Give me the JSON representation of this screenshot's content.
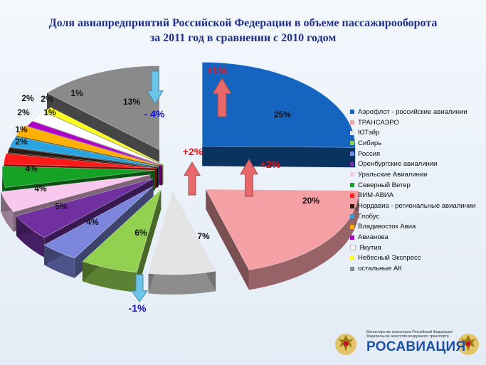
{
  "title_line1": "Доля авиапредприятий Российской Федерации в объеме пассажирооборота",
  "title_line2": "за 2011 год в сравнении с 2010 годом",
  "chart_data": {
    "type": "pie",
    "title": "Доля авиапредприятий Российской Федерации в объеме пассажирооборота за 2011 год в сравнении с 2010 годом",
    "unit": "%",
    "slices": [
      {
        "name": "Аэрофлот - российские авиалинии",
        "value": 25,
        "label": "25%",
        "color": "#1565c0"
      },
      {
        "name": "ТРАНСАЭРО",
        "value": 20,
        "label": "20%",
        "color": "#f4a0a4"
      },
      {
        "name": "ЮТэйр",
        "value": 7,
        "label": "7%",
        "color": "#e4e4e4"
      },
      {
        "name": "Сибирь",
        "value": 6,
        "label": "6%",
        "color": "#92d050"
      },
      {
        "name": "Россия",
        "value": 4,
        "label": "4%",
        "color": "#7b86dc"
      },
      {
        "name": "Оренбургские авиалинии",
        "value": 5,
        "label": "5%",
        "color": "#7030a0"
      },
      {
        "name": "Уральские Авиалинии",
        "value": 4,
        "label": "4%",
        "color": "#f9c8ee"
      },
      {
        "name": "Северный Ветер",
        "value": 4,
        "label": "4%",
        "color": "#16a325"
      },
      {
        "name": "ВИМ-АВИА",
        "value": 2,
        "label": "2%",
        "color": "#ff1a1a"
      },
      {
        "name": "Нордавиа - региональные авиалинии",
        "value": 1,
        "label": "1%",
        "color": "#2b1b12"
      },
      {
        "name": "Глобус",
        "value": 2,
        "label": "2%",
        "color": "#2aa4e0"
      },
      {
        "name": "Владивосток Авиа",
        "value": 2,
        "label": "2%",
        "color": "#ffb000"
      },
      {
        "name": "Авианова",
        "value": 1,
        "label": "1%",
        "color": "#b000c8"
      },
      {
        "name": "Якутия",
        "value": 2,
        "label": "2%",
        "color": "#ffffff"
      },
      {
        "name": "Небесный Экспресс",
        "value": 1,
        "label": "1%",
        "color": "#ffff20"
      },
      {
        "name": "остальные АК",
        "value": 13,
        "label": "13%",
        "color": "#8a8a8a"
      }
    ],
    "changes": [
      {
        "slice": "Аэрофлот - российские авиалинии",
        "label": "+1%",
        "direction": "up"
      },
      {
        "slice": "ТРАНСАЭРО",
        "label": "+2%",
        "direction": "up"
      },
      {
        "slice": "ЮТэйр",
        "label": "+2%",
        "direction": "up"
      },
      {
        "slice": "Сибирь",
        "label": "-1%",
        "direction": "down"
      },
      {
        "slice": "остальные АК",
        "label": "- 4%",
        "direction": "down"
      }
    ],
    "legend_position": "right"
  },
  "logo": {
    "org_line1": "Министерство транспорта Российской Федерации",
    "org_line2": "Федеральное агентство воздушного транспорта",
    "brand": "РОСАВИАЦИЯ"
  },
  "colors": {
    "title": "#1f2f8a",
    "up_arrow": "#e8696b",
    "down_arrow": "#6cc4ea",
    "change_up_text": "#ee1111",
    "change_down_text": "#1111cc"
  }
}
